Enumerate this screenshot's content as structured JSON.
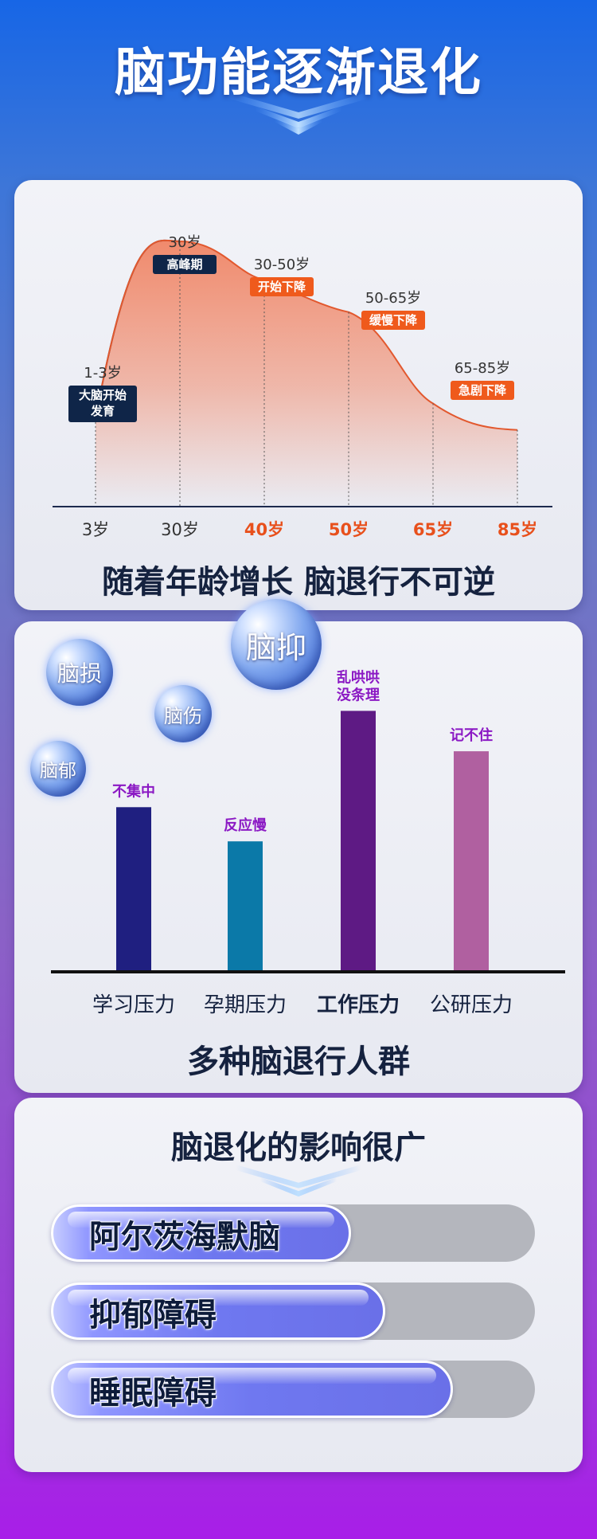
{
  "header": {
    "title": "脑功能逐渐退化"
  },
  "chart_data": [
    {
      "type": "area",
      "x_ticks": [
        "3岁",
        "30岁",
        "40岁",
        "50岁",
        "65岁",
        "85岁"
      ],
      "x": [
        3,
        30,
        40,
        50,
        65,
        85
      ],
      "y": [
        30,
        90,
        77,
        66,
        35,
        26
      ],
      "ylim": [
        0,
        100
      ],
      "annotations": [
        {
          "age": "1-3岁",
          "label": "大脑开始\n发育"
        },
        {
          "age": "30岁",
          "label": "高峰期"
        },
        {
          "age": "30-50岁",
          "label": "开始下降"
        },
        {
          "age": "50-65岁",
          "label": "缓慢下降"
        },
        {
          "age": "65-85岁",
          "label": "急剧下降"
        }
      ],
      "caption": "随着年龄增长 脑退行不可逆",
      "colors": {
        "area": "#f08a6c",
        "line": "#e2582e",
        "highlight_tick": "#e8501c",
        "dark_tag": "#0f2548",
        "orange_tag": "#ef5a1c"
      }
    },
    {
      "type": "bar",
      "categories": [
        "学习压力",
        "孕期压力",
        "工作压力",
        "公研压力"
      ],
      "values": [
        53,
        42,
        84,
        71
      ],
      "ylim": [
        0,
        100
      ],
      "data_labels": [
        "不集中",
        "反应慢",
        "乱哄哄\n没条理",
        "记不住"
      ],
      "bar_colors": [
        "#1f1f80",
        "#0b79a8",
        "#5e1a84",
        "#b060a0"
      ],
      "label_color": "#8b19c4",
      "caption": "多种脑退行人群"
    }
  ],
  "bubbles": [
    "脑损",
    "脑伤",
    "脑抑",
    "脑郁"
  ],
  "impact": {
    "title": "脑退化的影响很广",
    "items": [
      {
        "label": "阿尔茨海默脑",
        "level": 0.62
      },
      {
        "label": "抑郁障碍",
        "level": 0.69
      },
      {
        "label": "睡眠障碍",
        "level": 0.83
      }
    ]
  }
}
